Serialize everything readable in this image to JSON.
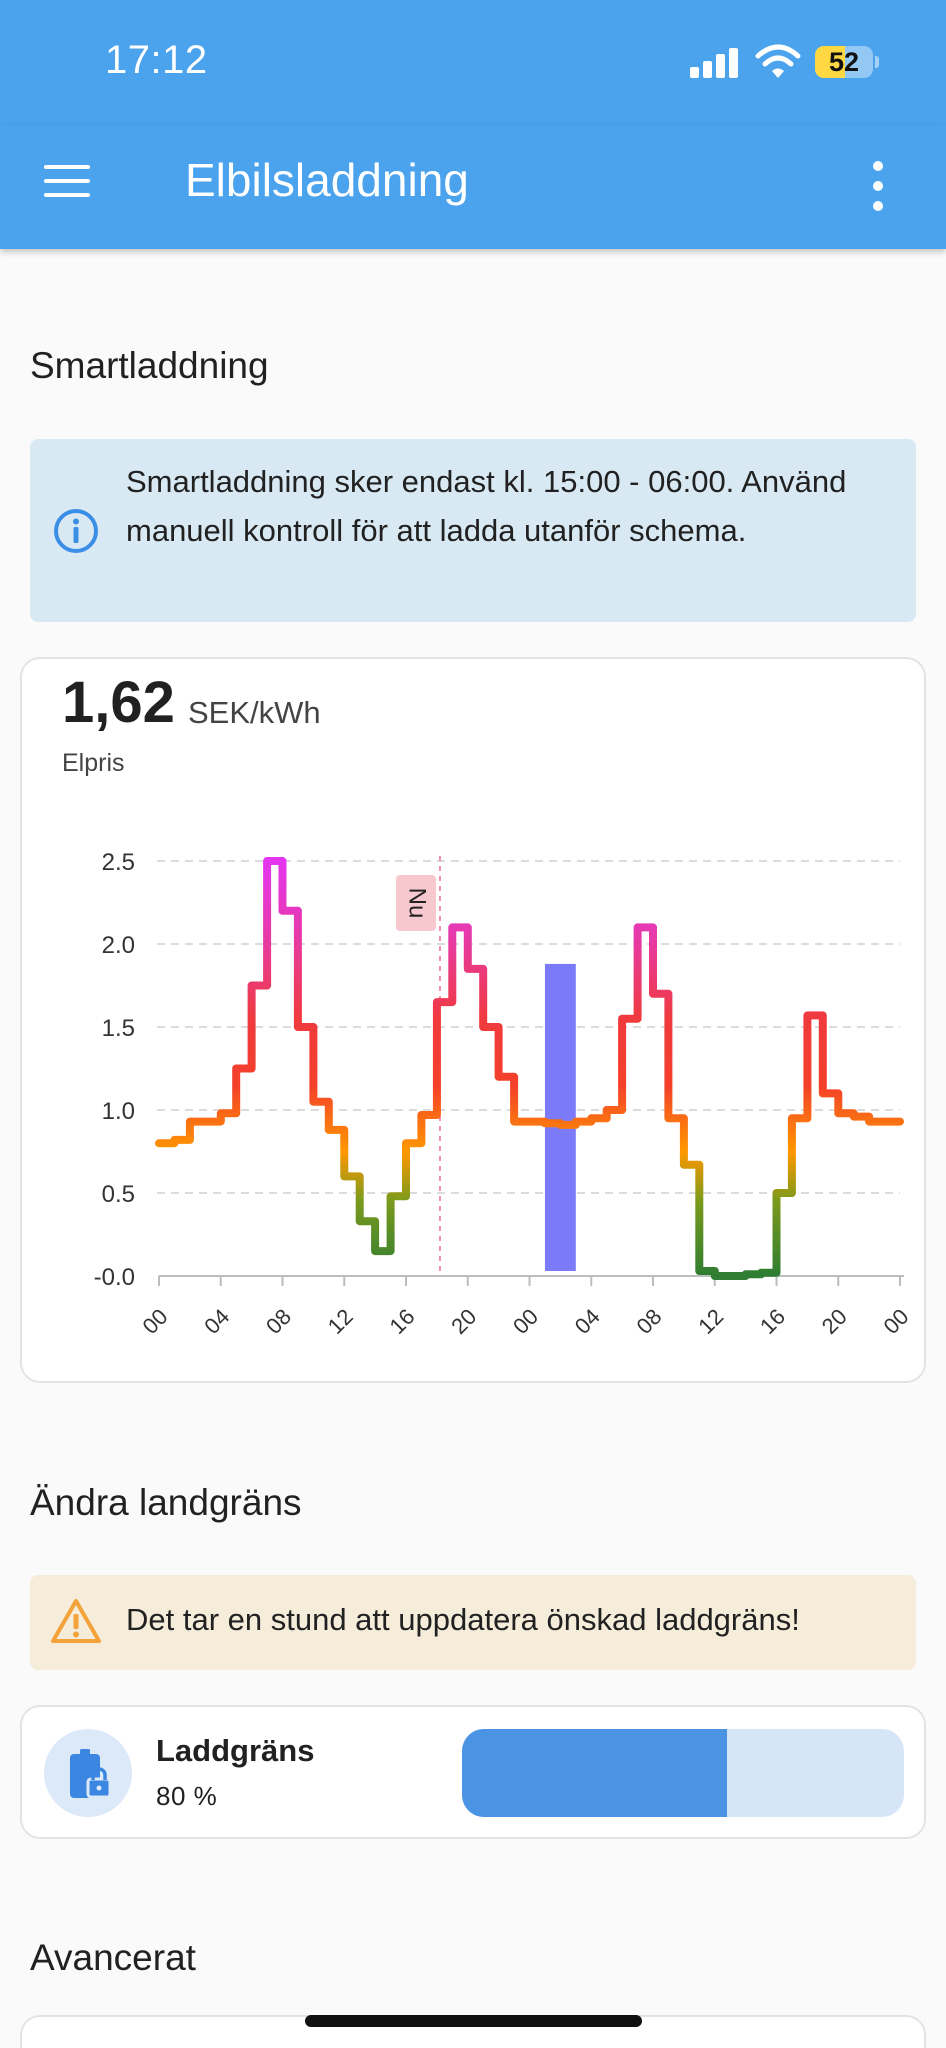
{
  "status_bar": {
    "time": "17:12",
    "battery": "52",
    "battery_level": 0.52
  },
  "app_bar": {
    "title": "Elbilsladdning",
    "menu_icon": "hamburger-menu-icon",
    "more_icon": "more-vert-icon"
  },
  "smart_charging": {
    "title": "Smartladdning",
    "info_icon": "info-icon",
    "info_text": "Smartladdning sker endast kl. 15:00 - 06:00. Använd manuell kontroll för att ladda utanför schema.",
    "price_value": "1,62",
    "price_unit": "SEK/kWh",
    "price_label": "Elpris"
  },
  "chart_data": {
    "type": "line",
    "title": "",
    "xlabel": "",
    "ylabel": "",
    "ylim": [
      0,
      2.5
    ],
    "y_ticks": [
      "2.5",
      "2.0",
      "1.5",
      "1.0",
      "0.5",
      "-0.0"
    ],
    "x_ticks": [
      "00",
      "04",
      "08",
      "12",
      "16",
      "20",
      "00",
      "04",
      "08",
      "12",
      "16",
      "20",
      "00"
    ],
    "grid": true,
    "now_marker": {
      "label": "Nu",
      "hour": 18.2
    },
    "charging_block": {
      "from_hour": 25,
      "to_hour": 27,
      "value": 1.88
    },
    "x_hours": [
      0,
      1,
      2,
      3,
      4,
      5,
      6,
      7,
      8,
      9,
      10,
      11,
      12,
      13,
      14,
      15,
      16,
      17,
      18,
      19,
      20,
      21,
      22,
      23,
      24,
      25,
      26,
      27,
      28,
      29,
      30,
      31,
      32,
      33,
      34,
      35,
      36,
      37,
      38,
      39,
      40,
      41,
      42,
      43,
      44,
      45,
      46,
      47
    ],
    "values": [
      0.8,
      0.82,
      0.93,
      0.93,
      0.98,
      1.25,
      1.75,
      2.5,
      2.2,
      1.5,
      1.05,
      0.88,
      0.6,
      0.33,
      0.15,
      0.48,
      0.8,
      0.97,
      1.65,
      2.1,
      1.85,
      1.5,
      1.2,
      0.93,
      0.93,
      0.92,
      0.91,
      0.93,
      0.95,
      1.0,
      1.55,
      2.1,
      1.7,
      0.95,
      0.67,
      0.03,
      0.0,
      0.0,
      0.01,
      0.02,
      0.5,
      0.95,
      1.57,
      1.1,
      0.98,
      0.96,
      0.93,
      0.93
    ],
    "colors": {
      "low": "#2e7d32",
      "mid": "#ff9800",
      "high_red": "#f4402a",
      "peak": "#e535f0",
      "block": "#7b7bfa",
      "now_line": "#f48fb1",
      "now_label_bg": "#f8c8cf"
    }
  },
  "charge_limit": {
    "title": "Ändra landgräns",
    "warning_icon": "warning-icon",
    "warning_text": "Det tar en stund att uppdatera önskad laddgräns!",
    "name": "Laddgräns",
    "value_text": "80 %",
    "value_fraction": 0.6,
    "icon": "battery-lock-icon"
  },
  "advanced": {
    "title": "Avancerat"
  }
}
